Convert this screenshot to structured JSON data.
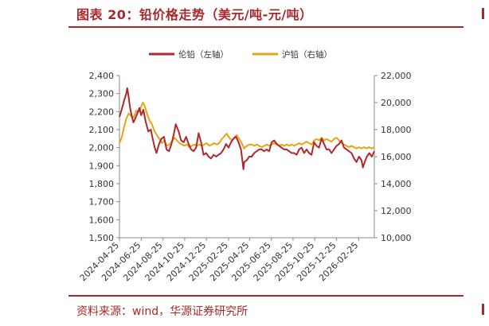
{
  "header": {
    "title": "图表 20：铅价格走势（美元/吨-元/吨）"
  },
  "footer": {
    "source": "资料来源：wind，华源证券研究所"
  },
  "chart_data": {
    "type": "line",
    "grid": false,
    "legend_position": "top-center",
    "left_axis": {
      "ylim": [
        1500,
        2400
      ],
      "ticks": [
        "1,500",
        "1,600",
        "1,700",
        "1,800",
        "1,900",
        "2,000",
        "2,100",
        "2,200",
        "2,300",
        "2,400"
      ]
    },
    "right_axis": {
      "ylim": [
        10000,
        22000
      ],
      "ticks": [
        "10,000",
        "12,000",
        "14,000",
        "16,000",
        "18,000",
        "20,000",
        "22,000"
      ]
    },
    "x_ticks": [
      "2024-04-25",
      "2024-06-25",
      "2024-08-25",
      "2024-10-25",
      "2024-12-25",
      "2025-02-25",
      "2025-04-25",
      "2025-06-25",
      "2025-08-25",
      "2025-10-25",
      "2025-12-25",
      "2026-02-25"
    ],
    "x_range": [
      "2024-04-25",
      "2026-04-10"
    ],
    "series": [
      {
        "name": "伦铅（左轴）",
        "axis": "left",
        "color": "#b0282a",
        "points": [
          [
            "2024-04-25",
            2170
          ],
          [
            "2024-05-01",
            2210
          ],
          [
            "2024-05-08",
            2260
          ],
          [
            "2024-05-14",
            2300
          ],
          [
            "2024-05-17",
            2330
          ],
          [
            "2024-05-21",
            2280
          ],
          [
            "2024-05-24",
            2230
          ],
          [
            "2024-05-29",
            2180
          ],
          [
            "2024-06-03",
            2140
          ],
          [
            "2024-06-08",
            2160
          ],
          [
            "2024-06-14",
            2190
          ],
          [
            "2024-06-20",
            2220
          ],
          [
            "2024-06-25",
            2180
          ],
          [
            "2024-07-01",
            2210
          ],
          [
            "2024-07-08",
            2140
          ],
          [
            "2024-07-15",
            2090
          ],
          [
            "2024-07-22",
            2100
          ],
          [
            "2024-07-26",
            2060
          ],
          [
            "2024-08-02",
            2000
          ],
          [
            "2024-08-07",
            1970
          ],
          [
            "2024-08-14",
            2020
          ],
          [
            "2024-08-21",
            2050
          ],
          [
            "2024-08-28",
            2060
          ],
          [
            "2024-09-04",
            1990
          ],
          [
            "2024-09-11",
            1980
          ],
          [
            "2024-09-18",
            2020
          ],
          [
            "2024-09-25",
            2080
          ],
          [
            "2024-09-30",
            2130
          ],
          [
            "2024-10-08",
            2090
          ],
          [
            "2024-10-15",
            2040
          ],
          [
            "2024-10-22",
            2030
          ],
          [
            "2024-10-29",
            2060
          ],
          [
            "2024-11-05",
            2020
          ],
          [
            "2024-11-12",
            1990
          ],
          [
            "2024-11-19",
            1980
          ],
          [
            "2024-11-26",
            2000
          ],
          [
            "2024-12-03",
            2080
          ],
          [
            "2024-12-10",
            2030
          ],
          [
            "2024-12-17",
            1960
          ],
          [
            "2024-12-24",
            1970
          ],
          [
            "2024-12-31",
            1950
          ],
          [
            "2025-01-07",
            1940
          ],
          [
            "2025-01-14",
            1960
          ],
          [
            "2025-01-21",
            1950
          ],
          [
            "2025-01-28",
            1960
          ],
          [
            "2025-02-04",
            1970
          ],
          [
            "2025-02-11",
            1990
          ],
          [
            "2025-02-18",
            2020
          ],
          [
            "2025-02-25",
            2000
          ],
          [
            "2025-03-04",
            2030
          ],
          [
            "2025-03-11",
            2050
          ],
          [
            "2025-03-18",
            2060
          ],
          [
            "2025-03-25",
            2030
          ],
          [
            "2025-04-01",
            1990
          ],
          [
            "2025-04-04",
            1940
          ],
          [
            "2025-04-08",
            1880
          ],
          [
            "2025-04-10",
            1920
          ],
          [
            "2025-04-17",
            1930
          ],
          [
            "2025-04-24",
            1950
          ],
          [
            "2025-05-01",
            1950
          ],
          [
            "2025-05-08",
            1970
          ],
          [
            "2025-05-15",
            1980
          ],
          [
            "2025-05-22",
            1990
          ],
          [
            "2025-05-29",
            1990
          ],
          [
            "2025-06-05",
            1980
          ],
          [
            "2025-06-12",
            1990
          ],
          [
            "2025-06-19",
            1980
          ],
          [
            "2025-06-26",
            2030
          ],
          [
            "2025-07-03",
            2040
          ],
          [
            "2025-07-10",
            2020
          ],
          [
            "2025-07-17",
            2010
          ],
          [
            "2025-07-24",
            2000
          ],
          [
            "2025-07-31",
            1990
          ],
          [
            "2025-08-07",
            1990
          ],
          [
            "2025-08-14",
            1980
          ],
          [
            "2025-08-21",
            1970
          ],
          [
            "2025-08-28",
            1970
          ],
          [
            "2025-09-04",
            1960
          ],
          [
            "2025-09-11",
            1990
          ],
          [
            "2025-09-18",
            2000
          ],
          [
            "2025-09-25",
            1970
          ],
          [
            "2025-10-02",
            1990
          ],
          [
            "2025-10-09",
            1970
          ],
          [
            "2025-10-16",
            1960
          ],
          [
            "2025-10-23",
            2030
          ],
          [
            "2025-10-30",
            2010
          ],
          [
            "2025-11-06",
            2000
          ],
          [
            "2025-11-13",
            2050
          ],
          [
            "2025-11-20",
            2020
          ],
          [
            "2025-11-27",
            1990
          ],
          [
            "2025-12-04",
            1990
          ],
          [
            "2025-12-11",
            1970
          ],
          [
            "2025-12-18",
            1990
          ],
          [
            "2025-12-25",
            2010
          ],
          [
            "2026-01-01",
            2020
          ],
          [
            "2026-01-08",
            2040
          ],
          [
            "2026-01-15",
            2000
          ],
          [
            "2026-01-22",
            1990
          ],
          [
            "2026-01-29",
            1980
          ],
          [
            "2026-02-05",
            1970
          ],
          [
            "2026-02-12",
            1940
          ],
          [
            "2026-02-19",
            1920
          ],
          [
            "2026-02-26",
            1950
          ],
          [
            "2026-03-05",
            1930
          ],
          [
            "2026-03-09",
            1890
          ],
          [
            "2026-03-14",
            1920
          ],
          [
            "2026-03-20",
            1950
          ],
          [
            "2026-03-27",
            1970
          ],
          [
            "2026-04-03",
            1950
          ],
          [
            "2026-04-10",
            1980
          ]
        ]
      },
      {
        "name": "沪铅（右轴）",
        "axis": "right",
        "color": "#e8a317",
        "points": [
          [
            "2024-04-25",
            17000
          ],
          [
            "2024-05-01",
            17400
          ],
          [
            "2024-05-08",
            18200
          ],
          [
            "2024-05-14",
            18800
          ],
          [
            "2024-05-21",
            19200
          ],
          [
            "2024-05-28",
            19000
          ],
          [
            "2024-06-04",
            18900
          ],
          [
            "2024-06-11",
            19400
          ],
          [
            "2024-06-18",
            19300
          ],
          [
            "2024-06-25",
            19700
          ],
          [
            "2024-06-30",
            20000
          ],
          [
            "2024-07-04",
            19800
          ],
          [
            "2024-07-11",
            19200
          ],
          [
            "2024-07-18",
            18700
          ],
          [
            "2024-07-25",
            18400
          ],
          [
            "2024-08-01",
            17900
          ],
          [
            "2024-08-08",
            17600
          ],
          [
            "2024-08-15",
            17300
          ],
          [
            "2024-08-22",
            17000
          ],
          [
            "2024-08-29",
            17200
          ],
          [
            "2024-09-05",
            16800
          ],
          [
            "2024-09-12",
            16900
          ],
          [
            "2024-09-19",
            17100
          ],
          [
            "2024-09-26",
            17400
          ],
          [
            "2024-10-03",
            17200
          ],
          [
            "2024-10-10",
            17000
          ],
          [
            "2024-10-17",
            16900
          ],
          [
            "2024-10-24",
            16800
          ],
          [
            "2024-10-31",
            16900
          ],
          [
            "2024-11-07",
            16700
          ],
          [
            "2024-11-14",
            16800
          ],
          [
            "2024-11-21",
            16900
          ],
          [
            "2024-11-28",
            16800
          ],
          [
            "2024-12-05",
            16900
          ],
          [
            "2024-12-12",
            16800
          ],
          [
            "2024-12-19",
            16900
          ],
          [
            "2024-12-26",
            17000
          ],
          [
            "2025-01-02",
            16800
          ],
          [
            "2025-01-09",
            16900
          ],
          [
            "2025-01-16",
            17000
          ],
          [
            "2025-01-23",
            16900
          ],
          [
            "2025-01-30",
            17000
          ],
          [
            "2025-02-06",
            17300
          ],
          [
            "2025-02-13",
            17500
          ],
          [
            "2025-02-20",
            17700
          ],
          [
            "2025-02-27",
            17400
          ],
          [
            "2025-03-06",
            17200
          ],
          [
            "2025-03-13",
            17400
          ],
          [
            "2025-03-20",
            17600
          ],
          [
            "2025-03-27",
            17300
          ],
          [
            "2025-04-03",
            17000
          ],
          [
            "2025-04-10",
            16600
          ],
          [
            "2025-04-17",
            16800
          ],
          [
            "2025-04-24",
            16900
          ],
          [
            "2025-05-01",
            16900
          ],
          [
            "2025-05-08",
            16800
          ],
          [
            "2025-05-15",
            16900
          ],
          [
            "2025-05-22",
            16800
          ],
          [
            "2025-05-29",
            16700
          ],
          [
            "2025-06-05",
            16800
          ],
          [
            "2025-06-12",
            16900
          ],
          [
            "2025-06-19",
            16800
          ],
          [
            "2025-06-26",
            16900
          ],
          [
            "2025-07-03",
            17000
          ],
          [
            "2025-07-10",
            16900
          ],
          [
            "2025-07-17",
            16800
          ],
          [
            "2025-07-24",
            16900
          ],
          [
            "2025-07-31",
            16800
          ],
          [
            "2025-08-07",
            16900
          ],
          [
            "2025-08-14",
            16800
          ],
          [
            "2025-08-21",
            16900
          ],
          [
            "2025-08-28",
            16800
          ],
          [
            "2025-09-04",
            16900
          ],
          [
            "2025-09-11",
            17000
          ],
          [
            "2025-09-18",
            16900
          ],
          [
            "2025-09-25",
            17000
          ],
          [
            "2025-10-02",
            17100
          ],
          [
            "2025-10-09",
            17000
          ],
          [
            "2025-10-16",
            16900
          ],
          [
            "2025-10-23",
            17200
          ],
          [
            "2025-10-30",
            17300
          ],
          [
            "2025-11-06",
            17200
          ],
          [
            "2025-11-13",
            17400
          ],
          [
            "2025-11-20",
            17200
          ],
          [
            "2025-11-27",
            17300
          ],
          [
            "2025-12-04",
            17200
          ],
          [
            "2025-12-11",
            17100
          ],
          [
            "2025-12-18",
            17300
          ],
          [
            "2025-12-25",
            17400
          ],
          [
            "2026-01-01",
            17200
          ],
          [
            "2026-01-08",
            17000
          ],
          [
            "2026-01-15",
            16900
          ],
          [
            "2026-01-22",
            16800
          ],
          [
            "2026-01-29",
            16700
          ],
          [
            "2026-02-05",
            16800
          ],
          [
            "2026-02-12",
            16700
          ],
          [
            "2026-02-19",
            16600
          ],
          [
            "2026-02-26",
            16700
          ],
          [
            "2026-03-05",
            16600
          ],
          [
            "2026-03-12",
            16700
          ],
          [
            "2026-03-19",
            16600
          ],
          [
            "2026-03-26",
            16700
          ],
          [
            "2026-04-02",
            16600
          ],
          [
            "2026-04-10",
            16700
          ]
        ]
      }
    ]
  }
}
